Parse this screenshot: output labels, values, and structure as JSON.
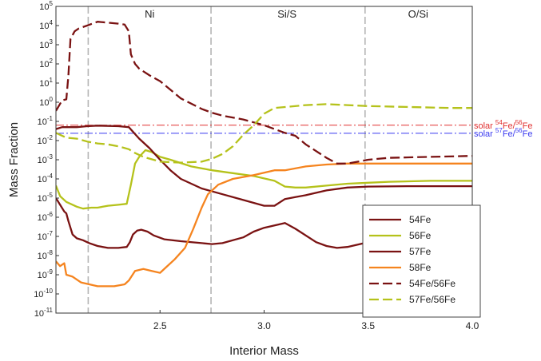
{
  "chart_data": {
    "type": "line",
    "title": "",
    "xlabel": "Interior Mass",
    "ylabel": "Mass Fraction",
    "xlim": [
      2.0,
      4.0
    ],
    "ylim_log10": [
      -11,
      5
    ],
    "y_scale": "log",
    "x_ticks": [
      2.5,
      3.0,
      3.5,
      4.0
    ],
    "x_tick_labels": [
      "2.5",
      "3.0",
      "3.5",
      "4.0"
    ],
    "y_ticks": [
      {
        "exp": 5,
        "label": "10",
        "sup": "5"
      },
      {
        "exp": 4,
        "label": "10",
        "sup": "4"
      },
      {
        "exp": 3,
        "label": "10",
        "sup": "3"
      },
      {
        "exp": 2,
        "label": "10",
        "sup": "2"
      },
      {
        "exp": 1,
        "label": "10",
        "sup": "1"
      },
      {
        "exp": 0,
        "label": "10",
        "sup": "0"
      },
      {
        "exp": -1,
        "label": "10",
        "sup": "-1"
      },
      {
        "exp": -2,
        "label": "10",
        "sup": "-2"
      },
      {
        "exp": -3,
        "label": "10",
        "sup": "-3"
      },
      {
        "exp": -4,
        "label": "10",
        "sup": "-4"
      },
      {
        "exp": -5,
        "label": "10",
        "sup": "-5"
      },
      {
        "exp": -6,
        "label": "10",
        "sup": "-6"
      },
      {
        "exp": -7,
        "label": "10",
        "sup": "-7"
      },
      {
        "exp": -8,
        "label": "10",
        "sup": "-8"
      },
      {
        "exp": -9,
        "label": "10",
        "sup": "-9"
      },
      {
        "exp": -10,
        "label": "10",
        "sup": "-10"
      },
      {
        "exp": -11,
        "label": "10",
        "sup": "-11"
      }
    ],
    "regions": [
      {
        "label": "Ni",
        "x_center": 2.45
      },
      {
        "label": "Si/S",
        "x_center": 3.11
      },
      {
        "label": "O/Si",
        "x_center": 3.74
      }
    ],
    "region_boundaries": [
      2.155,
      2.745,
      3.485
    ],
    "reference_lines": [
      {
        "name_prefix": "solar ",
        "sup1": "54",
        "mid": "Fe/",
        "sup2": "56",
        "end": "Fe",
        "log10_value": -1.2,
        "color": "#e03030"
      },
      {
        "name_prefix": "solar ",
        "sup1": "57",
        "mid": "Fe/",
        "sup2": "56",
        "end": "Fe",
        "log10_value": -1.62,
        "color": "#3a3af0"
      }
    ],
    "legend_position": "lower-right",
    "grid": false,
    "series": [
      {
        "name": "54Fe",
        "color": "#7a1212",
        "dashed": false,
        "points": [
          [
            2.0,
            -5.0
          ],
          [
            2.02,
            -5.35
          ],
          [
            2.04,
            -5.7
          ],
          [
            2.05,
            -5.8
          ],
          [
            2.06,
            -6.2
          ],
          [
            2.08,
            -6.9
          ],
          [
            2.1,
            -7.1
          ],
          [
            2.13,
            -7.2
          ],
          [
            2.16,
            -7.35
          ],
          [
            2.2,
            -7.5
          ],
          [
            2.25,
            -7.6
          ],
          [
            2.3,
            -7.6
          ],
          [
            2.34,
            -7.55
          ],
          [
            2.355,
            -7.3
          ],
          [
            2.37,
            -6.9
          ],
          [
            2.39,
            -6.7
          ],
          [
            2.41,
            -6.65
          ],
          [
            2.44,
            -6.75
          ],
          [
            2.47,
            -6.95
          ],
          [
            2.52,
            -7.15
          ],
          [
            2.6,
            -7.25
          ],
          [
            2.7,
            -7.35
          ],
          [
            2.75,
            -7.4
          ],
          [
            2.8,
            -7.35
          ],
          [
            2.9,
            -7.05
          ],
          [
            2.95,
            -6.75
          ],
          [
            3.0,
            -6.55
          ],
          [
            3.1,
            -6.3
          ],
          [
            3.15,
            -6.6
          ],
          [
            3.25,
            -7.3
          ],
          [
            3.3,
            -7.5
          ],
          [
            3.35,
            -7.6
          ],
          [
            3.4,
            -7.55
          ],
          [
            3.5,
            -7.3
          ],
          [
            3.6,
            -7.15
          ],
          [
            3.7,
            -7.05
          ],
          [
            3.8,
            -7.0
          ],
          [
            3.9,
            -6.95
          ],
          [
            4.0,
            -6.95
          ]
        ]
      },
      {
        "name": "56Fe",
        "color": "#b5c21b",
        "dashed": false,
        "points": [
          [
            2.0,
            -4.35
          ],
          [
            2.02,
            -4.9
          ],
          [
            2.05,
            -5.2
          ],
          [
            2.1,
            -5.45
          ],
          [
            2.13,
            -5.55
          ],
          [
            2.17,
            -5.5
          ],
          [
            2.2,
            -5.5
          ],
          [
            2.25,
            -5.4
          ],
          [
            2.3,
            -5.35
          ],
          [
            2.34,
            -5.3
          ],
          [
            2.36,
            -4.3
          ],
          [
            2.38,
            -3.2
          ],
          [
            2.4,
            -2.85
          ],
          [
            2.43,
            -2.5
          ],
          [
            2.46,
            -2.6
          ],
          [
            2.5,
            -2.85
          ],
          [
            2.55,
            -3.0
          ],
          [
            2.65,
            -3.35
          ],
          [
            2.75,
            -3.55
          ],
          [
            2.85,
            -3.7
          ],
          [
            2.95,
            -3.85
          ],
          [
            3.05,
            -4.1
          ],
          [
            3.1,
            -4.4
          ],
          [
            3.15,
            -4.45
          ],
          [
            3.2,
            -4.45
          ],
          [
            3.3,
            -4.35
          ],
          [
            3.4,
            -4.25
          ],
          [
            3.5,
            -4.2
          ],
          [
            3.6,
            -4.15
          ],
          [
            3.8,
            -4.1
          ],
          [
            4.0,
            -4.1
          ]
        ]
      },
      {
        "name": "57Fe",
        "color": "#7a1212",
        "dashed": false,
        "points": [
          [
            2.0,
            -1.4
          ],
          [
            2.03,
            -1.3
          ],
          [
            2.06,
            -1.3
          ],
          [
            2.1,
            -1.3
          ],
          [
            2.15,
            -1.25
          ],
          [
            2.2,
            -1.22
          ],
          [
            2.3,
            -1.25
          ],
          [
            2.35,
            -1.3
          ],
          [
            2.4,
            -1.9
          ],
          [
            2.45,
            -2.4
          ],
          [
            2.5,
            -3.0
          ],
          [
            2.55,
            -3.55
          ],
          [
            2.6,
            -4.0
          ],
          [
            2.7,
            -4.5
          ],
          [
            2.8,
            -4.8
          ],
          [
            2.9,
            -5.1
          ],
          [
            3.0,
            -5.4
          ],
          [
            3.05,
            -5.4
          ],
          [
            3.1,
            -5.05
          ],
          [
            3.15,
            -4.95
          ],
          [
            3.2,
            -4.85
          ],
          [
            3.3,
            -4.6
          ],
          [
            3.4,
            -4.45
          ],
          [
            3.5,
            -4.4
          ],
          [
            3.7,
            -4.38
          ],
          [
            3.9,
            -4.38
          ],
          [
            4.0,
            -4.38
          ]
        ]
      },
      {
        "name": "58Fe",
        "color": "#f5841f",
        "dashed": false,
        "points": [
          [
            2.0,
            -8.3
          ],
          [
            2.02,
            -8.55
          ],
          [
            2.04,
            -8.4
          ],
          [
            2.05,
            -9.0
          ],
          [
            2.08,
            -9.1
          ],
          [
            2.12,
            -9.4
          ],
          [
            2.2,
            -9.6
          ],
          [
            2.28,
            -9.6
          ],
          [
            2.33,
            -9.5
          ],
          [
            2.35,
            -9.3
          ],
          [
            2.38,
            -8.8
          ],
          [
            2.42,
            -8.7
          ],
          [
            2.46,
            -8.8
          ],
          [
            2.5,
            -8.9
          ],
          [
            2.53,
            -8.6
          ],
          [
            2.57,
            -8.2
          ],
          [
            2.62,
            -7.6
          ],
          [
            2.66,
            -6.6
          ],
          [
            2.7,
            -5.5
          ],
          [
            2.73,
            -4.8
          ],
          [
            2.78,
            -4.3
          ],
          [
            2.85,
            -4.0
          ],
          [
            2.95,
            -3.8
          ],
          [
            3.05,
            -3.55
          ],
          [
            3.1,
            -3.55
          ],
          [
            3.2,
            -3.35
          ],
          [
            3.3,
            -3.25
          ],
          [
            3.4,
            -3.2
          ],
          [
            3.5,
            -3.2
          ],
          [
            3.7,
            -3.2
          ],
          [
            4.0,
            -3.2
          ]
        ]
      },
      {
        "name": "54Fe/56Fe",
        "color": "#7a1212",
        "dashed": true,
        "points": [
          [
            2.0,
            -0.45
          ],
          [
            2.03,
            0.1
          ],
          [
            2.05,
            0.15
          ],
          [
            2.06,
            1.4
          ],
          [
            2.07,
            3.3
          ],
          [
            2.09,
            3.7
          ],
          [
            2.11,
            3.85
          ],
          [
            2.15,
            4.0
          ],
          [
            2.2,
            4.2
          ],
          [
            2.25,
            4.15
          ],
          [
            2.3,
            4.1
          ],
          [
            2.33,
            4.05
          ],
          [
            2.35,
            3.7
          ],
          [
            2.36,
            2.5
          ],
          [
            2.38,
            2.0
          ],
          [
            2.4,
            1.75
          ],
          [
            2.45,
            1.4
          ],
          [
            2.5,
            1.1
          ],
          [
            2.55,
            0.65
          ],
          [
            2.6,
            0.2
          ],
          [
            2.7,
            -0.35
          ],
          [
            2.75,
            -0.55
          ],
          [
            2.8,
            -0.7
          ],
          [
            2.9,
            -0.9
          ],
          [
            3.0,
            -1.2
          ],
          [
            3.05,
            -1.4
          ],
          [
            3.1,
            -1.6
          ],
          [
            3.15,
            -1.75
          ],
          [
            3.2,
            -2.2
          ],
          [
            3.3,
            -2.9
          ],
          [
            3.35,
            -3.2
          ],
          [
            3.4,
            -3.2
          ],
          [
            3.5,
            -3.0
          ],
          [
            3.6,
            -2.9
          ],
          [
            3.8,
            -2.85
          ],
          [
            4.0,
            -2.8
          ]
        ]
      },
      {
        "name": "57Fe/56Fe",
        "color": "#b5c21b",
        "dashed": true,
        "points": [
          [
            2.0,
            -1.6
          ],
          [
            2.02,
            -1.7
          ],
          [
            2.05,
            -1.85
          ],
          [
            2.1,
            -1.9
          ],
          [
            2.15,
            -2.05
          ],
          [
            2.2,
            -2.15
          ],
          [
            2.25,
            -2.2
          ],
          [
            2.3,
            -2.3
          ],
          [
            2.35,
            -2.45
          ],
          [
            2.38,
            -2.65
          ],
          [
            2.42,
            -2.85
          ],
          [
            2.5,
            -3.1
          ],
          [
            2.6,
            -3.15
          ],
          [
            2.7,
            -3.1
          ],
          [
            2.75,
            -2.95
          ],
          [
            2.8,
            -2.7
          ],
          [
            2.85,
            -2.3
          ],
          [
            2.9,
            -1.7
          ],
          [
            2.95,
            -1.2
          ],
          [
            3.0,
            -0.6
          ],
          [
            3.05,
            -0.3
          ],
          [
            3.1,
            -0.25
          ],
          [
            3.2,
            -0.15
          ],
          [
            3.3,
            -0.1
          ],
          [
            3.4,
            -0.15
          ],
          [
            3.5,
            -0.2
          ],
          [
            3.7,
            -0.25
          ],
          [
            3.9,
            -0.3
          ],
          [
            4.0,
            -0.3
          ]
        ]
      }
    ]
  }
}
